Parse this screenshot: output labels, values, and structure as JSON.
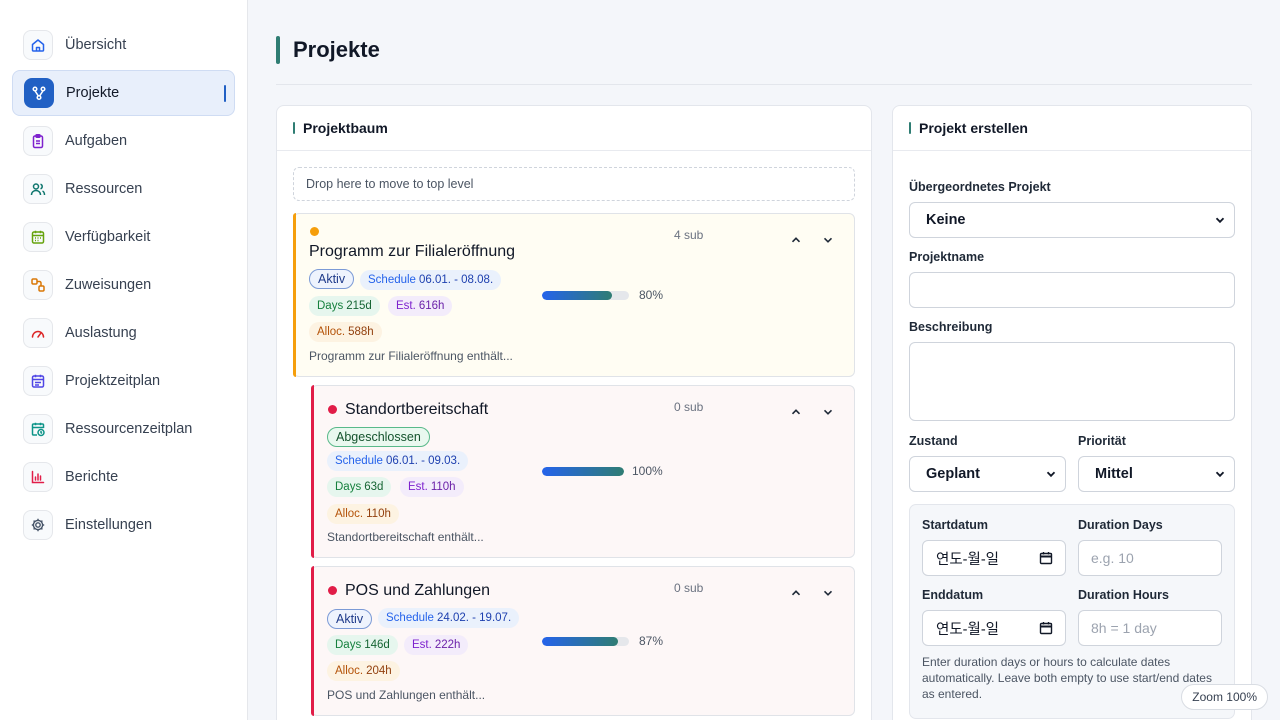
{
  "sidebar": {
    "items": [
      {
        "label": "Übersicht",
        "icon": "home-icon",
        "color": "#2563eb"
      },
      {
        "label": "Projekte",
        "icon": "project-tree-icon",
        "color": "#ffffff",
        "active": true
      },
      {
        "label": "Aufgaben",
        "icon": "clipboard-icon",
        "color": "#7e22ce"
      },
      {
        "label": "Ressourcen",
        "icon": "users-icon",
        "color": "#0f766e"
      },
      {
        "label": "Verfügbarkeit",
        "icon": "calendar-icon",
        "color": "#65a30d"
      },
      {
        "label": "Zuweisungen",
        "icon": "assignment-icon",
        "color": "#d97706"
      },
      {
        "label": "Auslastung",
        "icon": "gauge-icon",
        "color": "#dc2626"
      },
      {
        "label": "Projektzeitplan",
        "icon": "schedule-icon",
        "color": "#4f46e5"
      },
      {
        "label": "Ressourcenzeitplan",
        "icon": "clock-calendar-icon",
        "color": "#0d9488"
      },
      {
        "label": "Berichte",
        "icon": "bar-chart-icon",
        "color": "#e11d48"
      },
      {
        "label": "Einstellungen",
        "icon": "gear-icon",
        "color": "#475569"
      }
    ]
  },
  "page": {
    "title": "Projekte"
  },
  "tree": {
    "title": "Projektbaum",
    "drop_zone": "Drop here to move to top level",
    "projects": [
      {
        "name": "Programm zur Filialeröffnung",
        "sub": "4 sub",
        "status": "Aktiv",
        "schedule_label": "Schedule",
        "schedule_value": "06.01. - 08.08.",
        "days_label": "Days",
        "days_value": "215d",
        "est_label": "Est.",
        "est_value": "616h",
        "alloc_label": "Alloc.",
        "alloc_value": "588h",
        "progress": 0.8,
        "progress_label": "80%",
        "description": "Programm zur Filialeröffnung enthält...",
        "dot_color": "#f59e0b",
        "accent_color": "#f59e0b",
        "bg": "#fffdf3"
      },
      {
        "name": "Standortbereitschaft",
        "sub": "0 sub",
        "status": "Abgeschlossen",
        "schedule_label": "Schedule",
        "schedule_value": "06.01. - 09.03.",
        "days_label": "Days",
        "days_value": "63d",
        "est_label": "Est.",
        "est_value": "110h",
        "alloc_label": "Alloc.",
        "alloc_value": "110h",
        "progress": 1.0,
        "progress_label": "100%",
        "description": "Standortbereitschaft enthält...",
        "dot_color": "#e11d48",
        "accent_color": "#e11d48",
        "bg": "#fdf7f7"
      },
      {
        "name": "POS und Zahlungen",
        "sub": "0 sub",
        "status": "Aktiv",
        "schedule_label": "Schedule",
        "schedule_value": "24.02. - 19.07.",
        "days_label": "Days",
        "days_value": "146d",
        "est_label": "Est.",
        "est_value": "222h",
        "alloc_label": "Alloc.",
        "alloc_value": "204h",
        "progress": 0.87,
        "progress_label": "87%",
        "description": "POS und Zahlungen enthält...",
        "dot_color": "#e11d48",
        "accent_color": "#e11d48",
        "bg": "#fdf7f7"
      }
    ]
  },
  "form": {
    "title": "Projekt erstellen",
    "parent_label": "Übergeordnetes Projekt",
    "parent_value": "Keine",
    "name_label": "Projektname",
    "name_value": "",
    "desc_label": "Beschreibung",
    "desc_value": "",
    "state_label": "Zustand",
    "state_value": "Geplant",
    "priority_label": "Priorität",
    "priority_value": "Mittel",
    "start_label": "Startdatum",
    "start_value": "연도-월-일",
    "duration_days_label": "Duration Days",
    "duration_days_placeholder": "e.g. 10",
    "end_label": "Enddatum",
    "end_value": "연도-월-일",
    "duration_hours_label": "Duration Hours",
    "duration_hours_placeholder": "8h = 1 day",
    "help_text": "Enter duration days or hours to calculate dates automatically. Leave both empty to use start/end dates as entered."
  },
  "zoom": {
    "label": "Zoom 100%"
  }
}
